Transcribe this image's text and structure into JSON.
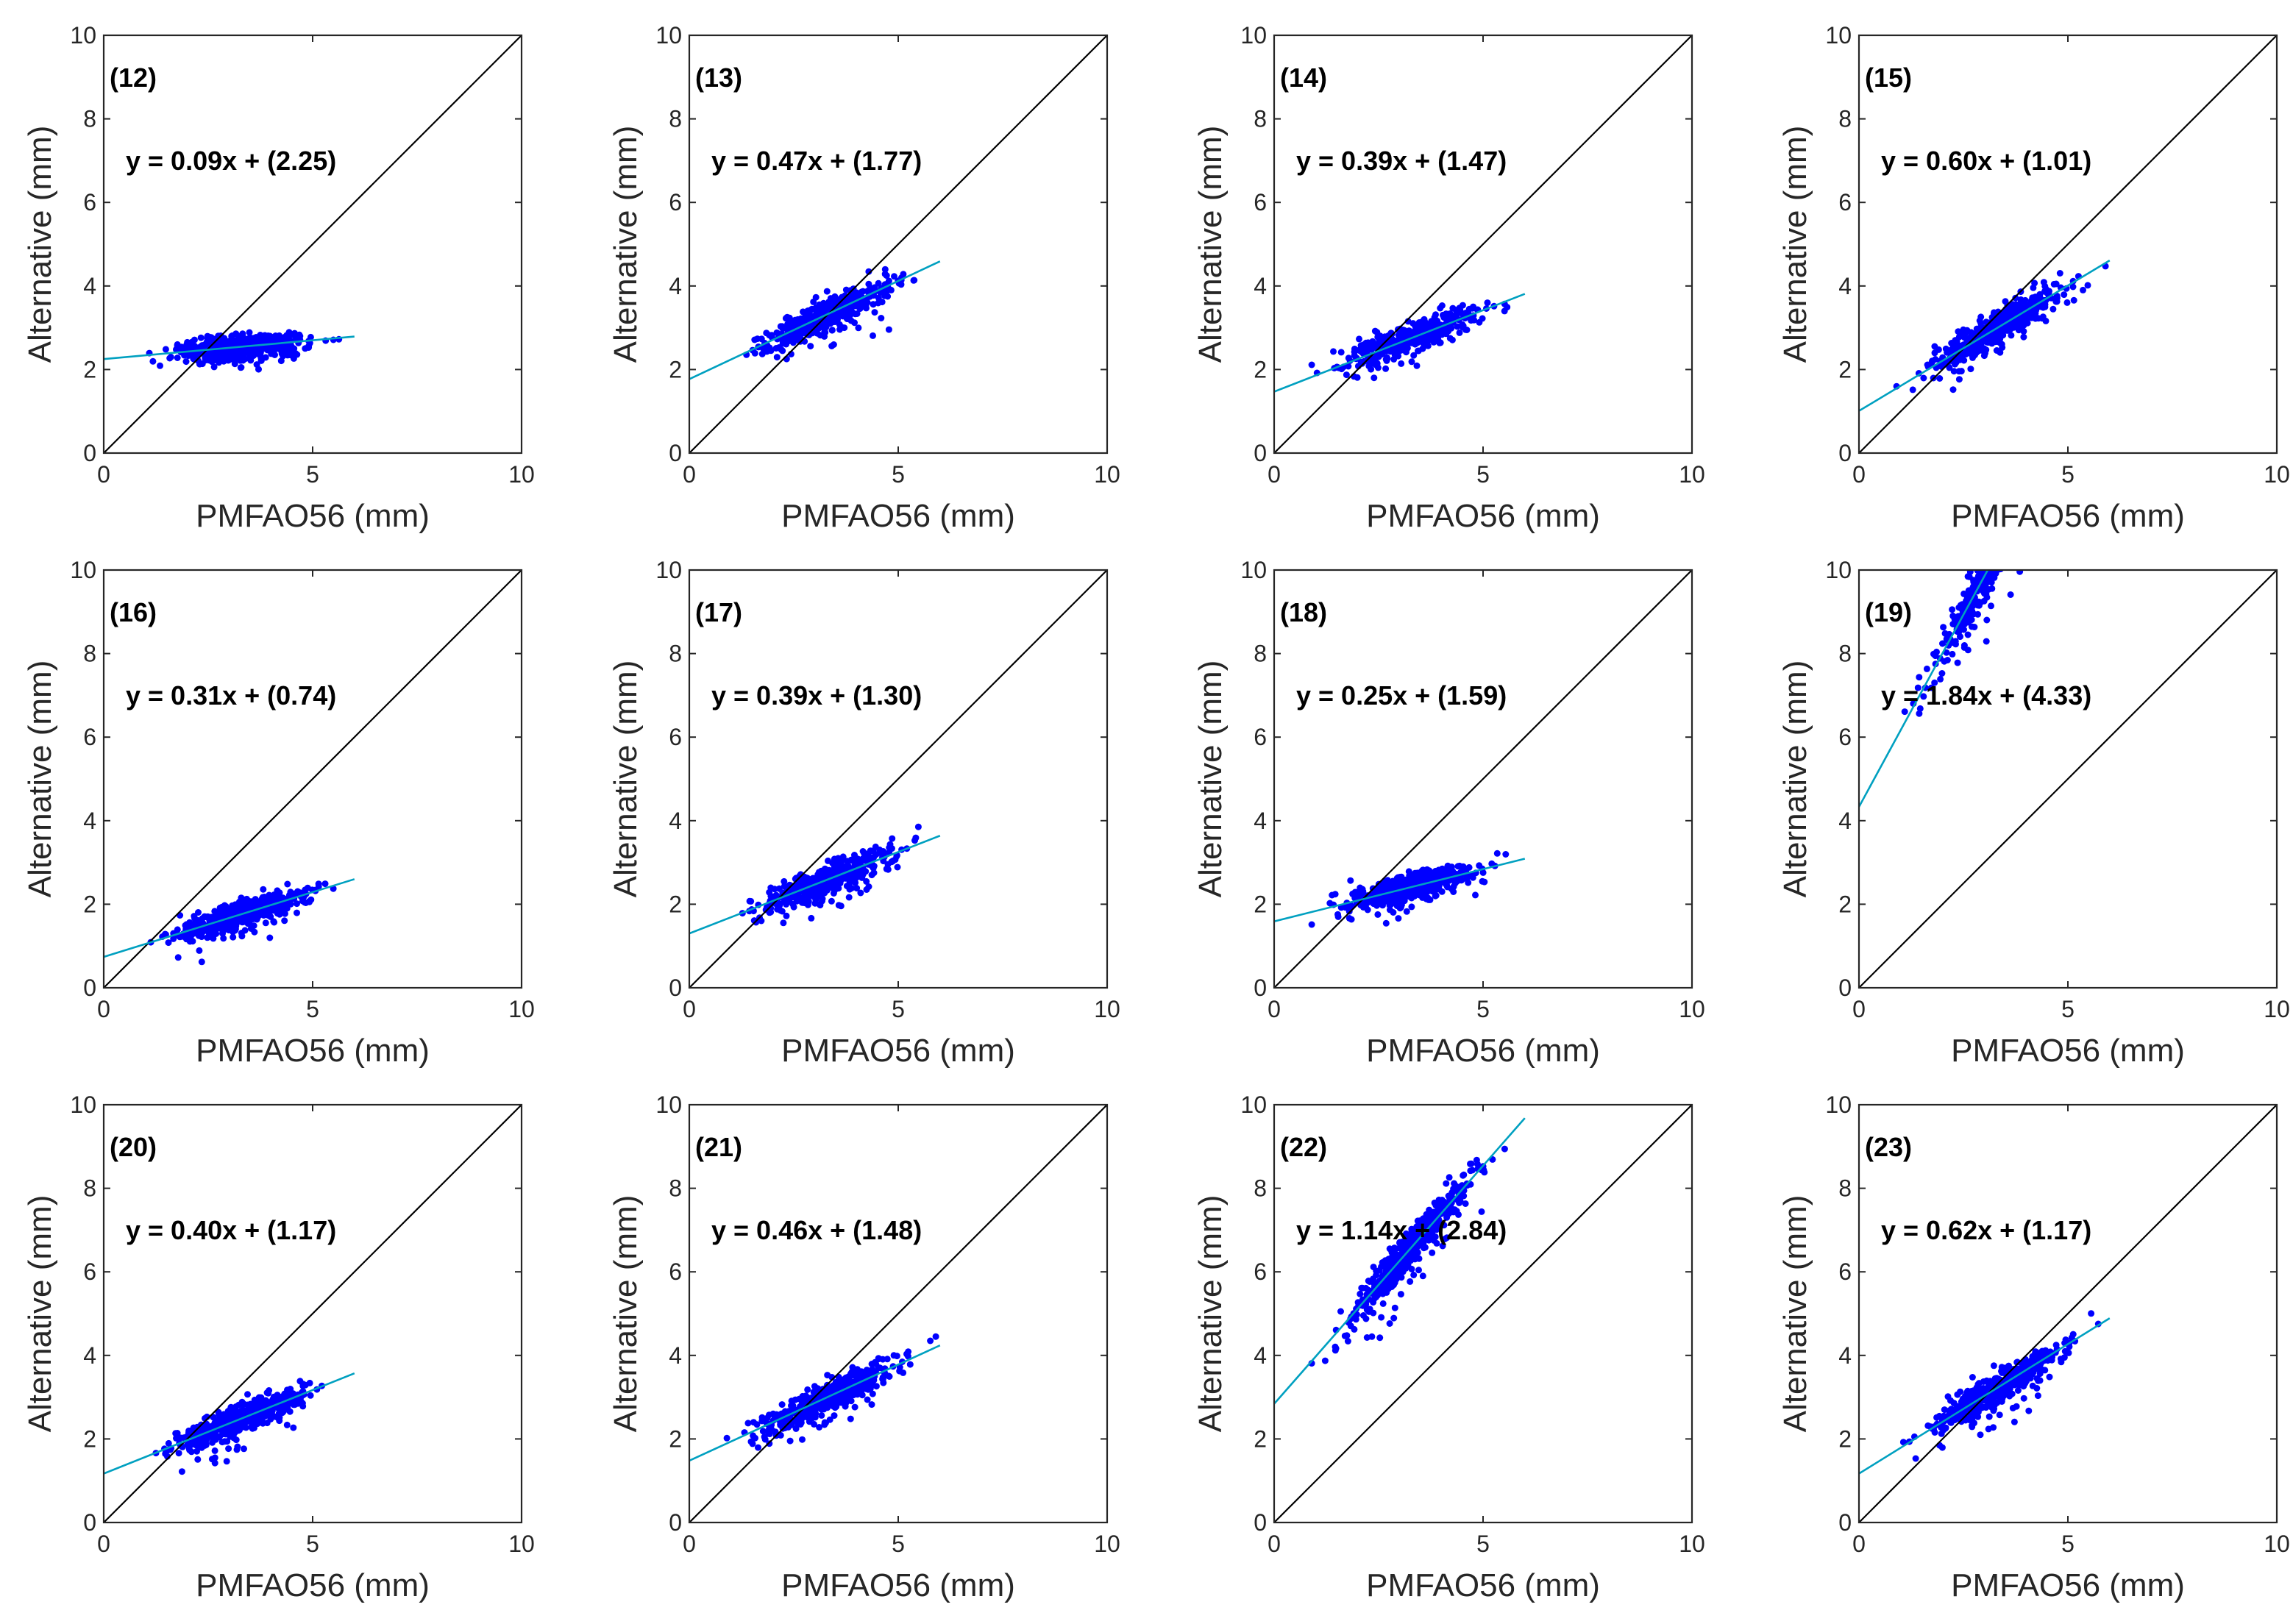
{
  "chart_data": [
    {
      "type": "scatter",
      "panel_label": "(12)",
      "equation": "y = 0.09x + (2.25)",
      "slope": 0.09,
      "intercept": 2.25,
      "xlabel": "PMFAO56 (mm)",
      "ylabel": "Alternative (mm)",
      "xlim": [
        0,
        10
      ],
      "ylim": [
        0,
        10
      ],
      "xticks": [
        "0",
        "5",
        "10"
      ],
      "yticks": [
        "0",
        "2",
        "4",
        "6",
        "8",
        "10"
      ],
      "identity_line": true,
      "marker_color": "#0000ff",
      "fit_color": "#00a0c0"
    },
    {
      "type": "scatter",
      "panel_label": "(13)",
      "equation": "y = 0.47x + (1.77)",
      "slope": 0.47,
      "intercept": 1.77,
      "xlabel": "PMFAO56 (mm)",
      "ylabel": "Alternative (mm)",
      "xlim": [
        0,
        10
      ],
      "ylim": [
        0,
        10
      ],
      "xticks": [
        "0",
        "5",
        "10"
      ],
      "yticks": [
        "0",
        "2",
        "4",
        "6",
        "8",
        "10"
      ],
      "identity_line": true,
      "marker_color": "#0000ff",
      "fit_color": "#00a0c0"
    },
    {
      "type": "scatter",
      "panel_label": "(14)",
      "equation": "y = 0.39x + (1.47)",
      "slope": 0.39,
      "intercept": 1.47,
      "xlabel": "PMFAO56 (mm)",
      "ylabel": "Alternative (mm)",
      "xlim": [
        0,
        10
      ],
      "ylim": [
        0,
        10
      ],
      "xticks": [
        "0",
        "5",
        "10"
      ],
      "yticks": [
        "0",
        "2",
        "4",
        "6",
        "8",
        "10"
      ],
      "identity_line": true,
      "marker_color": "#0000ff",
      "fit_color": "#00a0c0"
    },
    {
      "type": "scatter",
      "panel_label": "(15)",
      "equation": "y = 0.60x + (1.01)",
      "slope": 0.6,
      "intercept": 1.01,
      "xlabel": "PMFAO56 (mm)",
      "ylabel": "Alternative (mm)",
      "xlim": [
        0,
        10
      ],
      "ylim": [
        0,
        10
      ],
      "xticks": [
        "0",
        "5",
        "10"
      ],
      "yticks": [
        "0",
        "2",
        "4",
        "6",
        "8",
        "10"
      ],
      "identity_line": true,
      "marker_color": "#0000ff",
      "fit_color": "#00a0c0"
    },
    {
      "type": "scatter",
      "panel_label": "(16)",
      "equation": "y = 0.31x + (0.74)",
      "slope": 0.31,
      "intercept": 0.74,
      "xlabel": "PMFAO56 (mm)",
      "ylabel": "Alternative (mm)",
      "xlim": [
        0,
        10
      ],
      "ylim": [
        0,
        10
      ],
      "xticks": [
        "0",
        "5",
        "10"
      ],
      "yticks": [
        "0",
        "2",
        "4",
        "6",
        "8",
        "10"
      ],
      "identity_line": true,
      "marker_color": "#0000ff",
      "fit_color": "#00a0c0"
    },
    {
      "type": "scatter",
      "panel_label": "(17)",
      "equation": "y = 0.39x + (1.30)",
      "slope": 0.39,
      "intercept": 1.3,
      "xlabel": "PMFAO56 (mm)",
      "ylabel": "Alternative (mm)",
      "xlim": [
        0,
        10
      ],
      "ylim": [
        0,
        10
      ],
      "xticks": [
        "0",
        "5",
        "10"
      ],
      "yticks": [
        "0",
        "2",
        "4",
        "6",
        "8",
        "10"
      ],
      "identity_line": true,
      "marker_color": "#0000ff",
      "fit_color": "#00a0c0"
    },
    {
      "type": "scatter",
      "panel_label": "(18)",
      "equation": "y = 0.25x + (1.59)",
      "slope": 0.25,
      "intercept": 1.59,
      "xlabel": "PMFAO56 (mm)",
      "ylabel": "Alternative (mm)",
      "xlim": [
        0,
        10
      ],
      "ylim": [
        0,
        10
      ],
      "xticks": [
        "0",
        "5",
        "10"
      ],
      "yticks": [
        "0",
        "2",
        "4",
        "6",
        "8",
        "10"
      ],
      "identity_line": true,
      "marker_color": "#0000ff",
      "fit_color": "#00a0c0"
    },
    {
      "type": "scatter",
      "panel_label": "(19)",
      "equation": "y = 1.84x + (4.33)",
      "slope": 1.84,
      "intercept": 4.33,
      "xlabel": "PMFAO56 (mm)",
      "ylabel": "Alternative (mm)",
      "xlim": [
        0,
        10
      ],
      "ylim": [
        0,
        10
      ],
      "xticks": [
        "0",
        "5",
        "10"
      ],
      "yticks": [
        "0",
        "2",
        "4",
        "6",
        "8",
        "10"
      ],
      "identity_line": true,
      "marker_color": "#0000ff",
      "fit_color": "#00a0c0"
    },
    {
      "type": "scatter",
      "panel_label": "(20)",
      "equation": "y = 0.40x + (1.17)",
      "slope": 0.4,
      "intercept": 1.17,
      "xlabel": "PMFAO56 (mm)",
      "ylabel": "Alternative (mm)",
      "xlim": [
        0,
        10
      ],
      "ylim": [
        0,
        10
      ],
      "xticks": [
        "0",
        "5",
        "10"
      ],
      "yticks": [
        "0",
        "2",
        "4",
        "6",
        "8",
        "10"
      ],
      "identity_line": true,
      "marker_color": "#0000ff",
      "fit_color": "#00a0c0"
    },
    {
      "type": "scatter",
      "panel_label": "(21)",
      "equation": "y = 0.46x + (1.48)",
      "slope": 0.46,
      "intercept": 1.48,
      "xlabel": "PMFAO56 (mm)",
      "ylabel": "Alternative (mm)",
      "xlim": [
        0,
        10
      ],
      "ylim": [
        0,
        10
      ],
      "xticks": [
        "0",
        "5",
        "10"
      ],
      "yticks": [
        "0",
        "2",
        "4",
        "6",
        "8",
        "10"
      ],
      "identity_line": true,
      "marker_color": "#0000ff",
      "fit_color": "#00a0c0"
    },
    {
      "type": "scatter",
      "panel_label": "(22)",
      "equation": "y = 1.14x + (2.84)",
      "slope": 1.14,
      "intercept": 2.84,
      "xlabel": "PMFAO56 (mm)",
      "ylabel": "Alternative (mm)",
      "xlim": [
        0,
        10
      ],
      "ylim": [
        0,
        10
      ],
      "xticks": [
        "0",
        "5",
        "10"
      ],
      "yticks": [
        "0",
        "2",
        "4",
        "6",
        "8",
        "10"
      ],
      "identity_line": true,
      "marker_color": "#0000ff",
      "fit_color": "#00a0c0"
    },
    {
      "type": "scatter",
      "panel_label": "(23)",
      "equation": "y = 0.62x + (1.17)",
      "slope": 0.62,
      "intercept": 1.17,
      "xlabel": "PMFAO56 (mm)",
      "ylabel": "Alternative (mm)",
      "xlim": [
        0,
        10
      ],
      "ylim": [
        0,
        10
      ],
      "xticks": [
        "0",
        "5",
        "10"
      ],
      "yticks": [
        "0",
        "2",
        "4",
        "6",
        "8",
        "10"
      ],
      "identity_line": true,
      "marker_color": "#0000ff",
      "fit_color": "#00a0c0"
    }
  ]
}
